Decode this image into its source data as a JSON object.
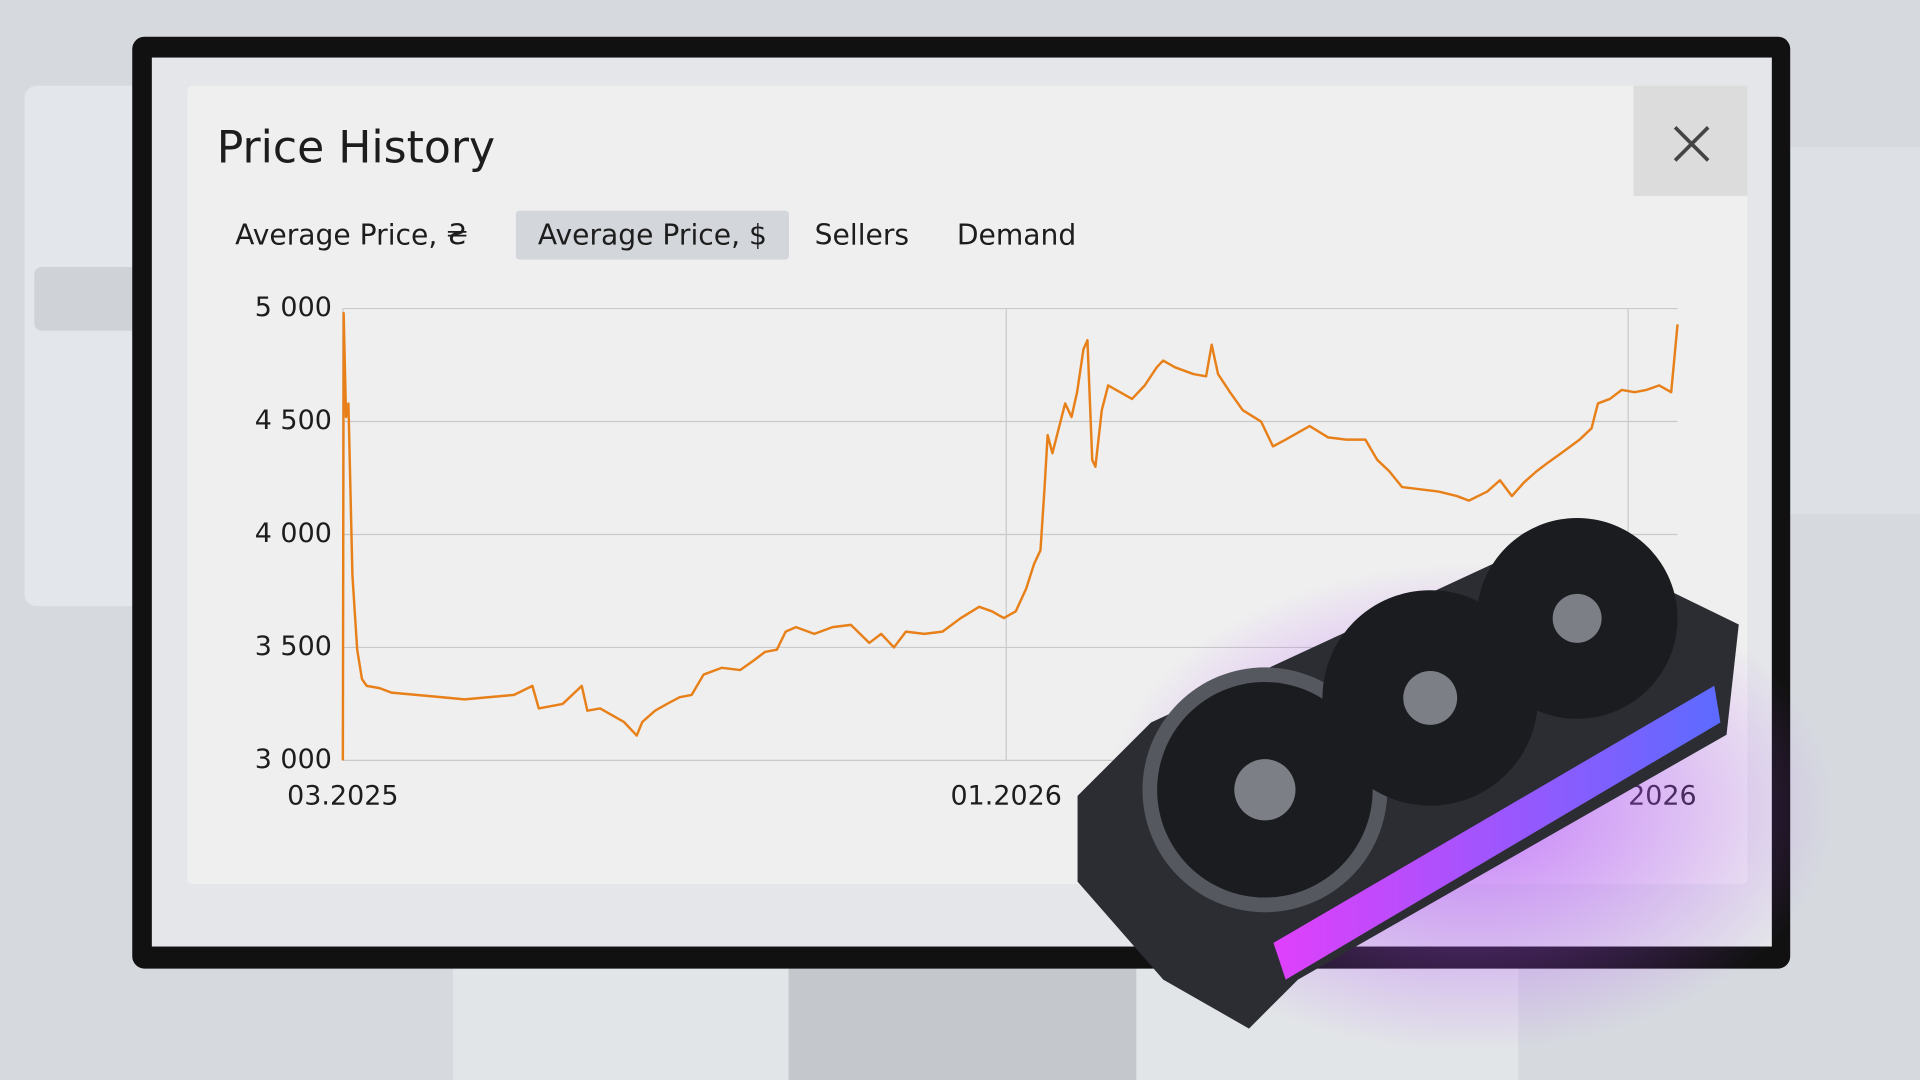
{
  "dialog": {
    "title": "Price History",
    "tabs": [
      "Average Price, ₴",
      "Average Price, $",
      "Sellers",
      "Demand"
    ],
    "active_tab": 1
  },
  "chart_data": {
    "type": "line",
    "color": "#e8801a",
    "grid": true,
    "x": [
      2025.167,
      2025.168,
      2025.171,
      2025.174,
      2025.179,
      2025.185,
      2025.191,
      2025.197,
      2025.213,
      2025.228,
      2025.259,
      2025.29,
      2025.32,
      2025.351,
      2025.382,
      2025.405,
      2025.413,
      2025.443,
      2025.467,
      2025.474,
      2025.49,
      2025.505,
      2025.52,
      2025.536,
      2025.543,
      2025.559,
      2025.574,
      2025.59,
      2025.605,
      2025.62,
      2025.643,
      2025.666,
      2025.682,
      2025.697,
      2025.712,
      2025.723,
      2025.736,
      2025.759,
      2025.782,
      2025.805,
      2025.828,
      2025.843,
      2025.859,
      2025.874,
      2025.897,
      2025.92,
      2025.943,
      2025.966,
      2025.982,
      2025.997,
      2026.012,
      2026.025,
      2026.035,
      2026.043,
      2026.048,
      2026.052,
      2026.058,
      2026.066,
      2026.074,
      2026.082,
      2026.089,
      2026.097,
      2026.102,
      2026.108,
      2026.112,
      2026.12,
      2026.128,
      2026.143,
      2026.158,
      2026.174,
      2026.189,
      2026.197,
      2026.212,
      2026.235,
      2026.251,
      2026.258,
      2026.266,
      2026.281,
      2026.297,
      2026.32,
      2026.335,
      2026.351,
      2026.366,
      2026.381,
      2026.404,
      2026.427,
      2026.451,
      2026.466,
      2026.481,
      2026.497,
      2026.52,
      2026.543,
      2026.566,
      2026.581,
      2026.604,
      2026.62,
      2026.635,
      2026.65,
      2026.666,
      2026.681,
      2026.697,
      2026.72,
      2026.735,
      2026.743,
      2026.758,
      2026.773,
      2026.789,
      2026.804,
      2026.82,
      2026.835,
      2026.843
    ],
    "values": [
      3000,
      4980,
      4520,
      4580,
      3820,
      3490,
      3360,
      3330,
      3320,
      3300,
      3290,
      3280,
      3270,
      3280,
      3290,
      3330,
      3230,
      3250,
      3330,
      3220,
      3230,
      3200,
      3170,
      3110,
      3170,
      3220,
      3250,
      3280,
      3290,
      3380,
      3410,
      3400,
      3440,
      3480,
      3490,
      3570,
      3590,
      3560,
      3590,
      3600,
      3520,
      3560,
      3500,
      3570,
      3560,
      3570,
      3630,
      3680,
      3660,
      3630,
      3660,
      3760,
      3870,
      3930,
      4200,
      4440,
      4360,
      4470,
      4580,
      4520,
      4630,
      4820,
      4860,
      4330,
      4300,
      4550,
      4660,
      4630,
      4600,
      4660,
      4740,
      4770,
      4740,
      4710,
      4700,
      4840,
      4710,
      4630,
      4550,
      4500,
      4390,
      4420,
      4450,
      4480,
      4430,
      4420,
      4420,
      4330,
      4280,
      4210,
      4200,
      4190,
      4170,
      4150,
      4190,
      4240,
      4170,
      4230,
      4280,
      4320,
      4360,
      4420,
      4470,
      4580,
      4600,
      4640,
      4630,
      4640,
      4660,
      4630,
      4930
    ],
    "xlim": [
      2025.167,
      2026.843
    ],
    "xticks": [
      {
        "value": 2025.167,
        "label": "03.2025"
      },
      {
        "value": 2026.0,
        "label": "01.2026"
      },
      {
        "value": 2026.781,
        "label": "2026"
      }
    ],
    "ylim": [
      3000,
      5000
    ],
    "yticks": [
      {
        "value": 3000,
        "label": "3 000"
      },
      {
        "value": 3500,
        "label": "3 500"
      },
      {
        "value": 4000,
        "label": "4 000"
      },
      {
        "value": 4500,
        "label": "4 500"
      },
      {
        "value": 5000,
        "label": "5 000"
      }
    ]
  }
}
